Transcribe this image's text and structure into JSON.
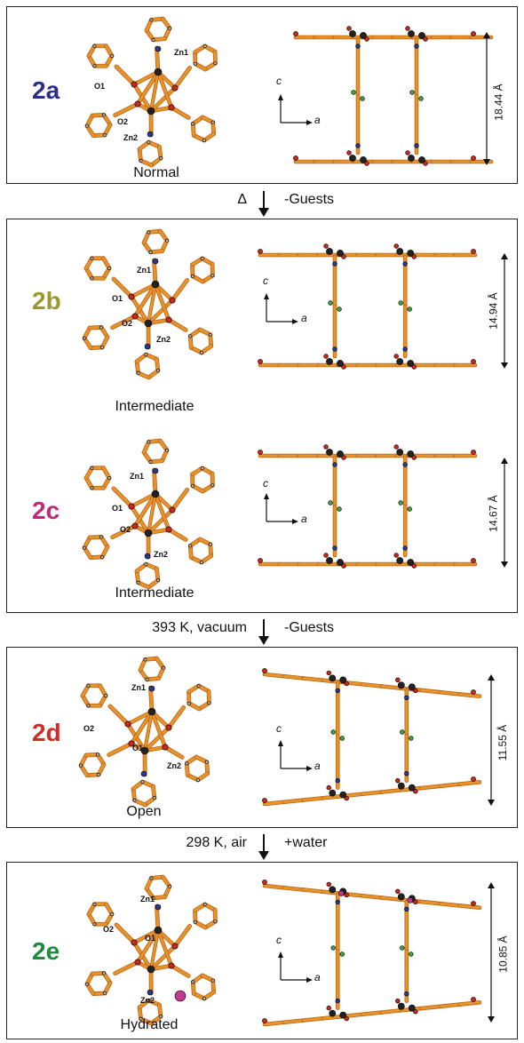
{
  "colors": {
    "bond": "#E8922A",
    "bond_dark": "#B8661A",
    "metal": "#222222",
    "oxygen": "#C8281E",
    "nitrogen": "#2A3A8C",
    "fluor": "#3FA33F",
    "water": "#C23A8E",
    "hydrogen": "#BFBFBF"
  },
  "panels": [
    {
      "id": "2a",
      "label": "2a",
      "label_color": "#2B2E8C",
      "caption": "Normal",
      "distance": "18.44 Å",
      "atoms": {
        "zn1": "Zn1",
        "zn2": "Zn2",
        "o1": "O1",
        "o2": "O2"
      }
    },
    {
      "id": "2b",
      "label": "2b",
      "label_color": "#9A9A2A",
      "caption": "Intermediate",
      "distance": "14.94 Å",
      "atoms": {
        "zn1": "Zn1",
        "zn2": "Zn2",
        "o1": "O1",
        "o2": "O2"
      }
    },
    {
      "id": "2c",
      "label": "2c",
      "label_color": "#C2287A",
      "caption": "Intermediate",
      "distance": "14.67 Å",
      "atoms": {
        "zn1": "Zn1",
        "zn2": "Zn2",
        "o1": "O1",
        "o2": "O2"
      }
    },
    {
      "id": "2d",
      "label": "2d",
      "label_color": "#D42A2A",
      "caption": "Open",
      "distance": "11.55 Å",
      "atoms": {
        "zn1": "Zn1",
        "zn2": "Zn2",
        "o1": "O1",
        "o2": "O2"
      }
    },
    {
      "id": "2e",
      "label": "2e",
      "label_color": "#1E8A3C",
      "caption": "Hydrated",
      "distance": "10.85 Å",
      "atoms": {
        "zn1": "Zn1",
        "zn2": "Zn2",
        "o1": "O1",
        "o2": "O2"
      }
    }
  ],
  "axes": {
    "c": "c",
    "a": "a"
  },
  "steps": [
    {
      "left": "Δ",
      "right": "-Guests"
    },
    {
      "left": "393 K, vacuum",
      "right": "-Guests"
    },
    {
      "left": "298 K, air",
      "right": "+water"
    }
  ]
}
